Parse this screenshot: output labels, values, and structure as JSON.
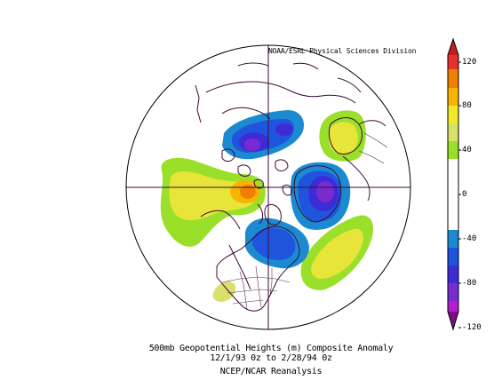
{
  "map": {
    "credit": "NOAA/ESRL Physical Sciences Division",
    "caption_line1": "500mb Geopotential Heights (m)   Composite Anomaly",
    "caption_line2": "12/1/93 0z  to 2/28/94 0z",
    "caption_line3": "NCEP/NCAR Reanalysis",
    "projection": "polar stereographic, north pole",
    "colors": {
      "pos_120": "#c01e1e",
      "pos_100": "#f07f00",
      "pos_80": "#f7b400",
      "pos_60": "#f3e92a",
      "pos_40": "#d8e26a",
      "pos_20": "#9adf2a",
      "neg_20": "#1c8ad0",
      "neg_40": "#1f55dd",
      "neg_60": "#3d2bd6",
      "neg_80": "#7a2bd0",
      "neg_100": "#b31fd0",
      "neg_120": "#7d0c86",
      "coast": "#3a0a33"
    }
  },
  "colorbar": {
    "ticks": [
      "120",
      "80",
      "40",
      "0",
      "-40",
      "-80",
      "-120"
    ]
  }
}
